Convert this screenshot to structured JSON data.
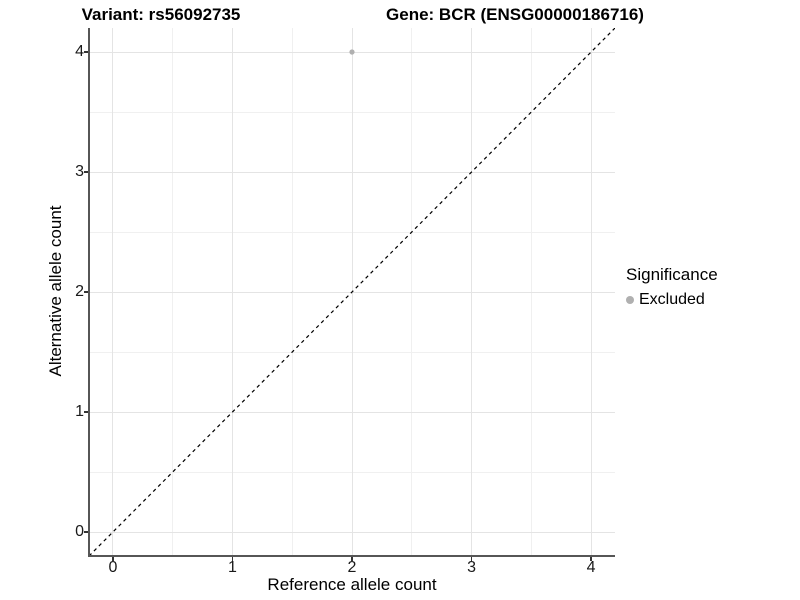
{
  "figure": {
    "title_left": "Variant: rs56092735",
    "title_right": "Gene: BCR (ENSG00000186716)"
  },
  "legend": {
    "title": "Significance",
    "items": [
      {
        "label": "Excluded",
        "marker": "circle",
        "color": "#b0b0b0"
      }
    ]
  },
  "chart_data": {
    "type": "scatter",
    "title_left": "Variant: rs56092735",
    "title_right": "Gene: BCR (ENSG00000186716)",
    "xlabel": "Reference allele count",
    "ylabel": "Alternative allele count",
    "xlim": [
      -0.2,
      4.2
    ],
    "ylim": [
      -0.2,
      4.2
    ],
    "xticks": [
      0,
      1,
      2,
      3,
      4
    ],
    "yticks": [
      0,
      1,
      2,
      3,
      4
    ],
    "xticks_minor": [
      0.5,
      1.5,
      2.5,
      3.5
    ],
    "yticks_minor": [
      0.5,
      1.5,
      2.5,
      3.5
    ],
    "grid": "major+minor",
    "legend_position": "right",
    "series": [
      {
        "name": "Excluded",
        "color": "#b0b0b0",
        "points": [
          {
            "x": 2,
            "y": 4
          }
        ]
      }
    ],
    "reference_line": {
      "style": "dashed",
      "color": "#000000",
      "from": [
        -0.2,
        -0.2
      ],
      "to": [
        4.2,
        4.2
      ]
    },
    "colors": {
      "grid_major": "#e4e4e4",
      "grid_minor": "#f0f0f0",
      "axis_line": "#565656",
      "tick": "#333333",
      "text": "#000000",
      "background": "#ffffff"
    }
  }
}
